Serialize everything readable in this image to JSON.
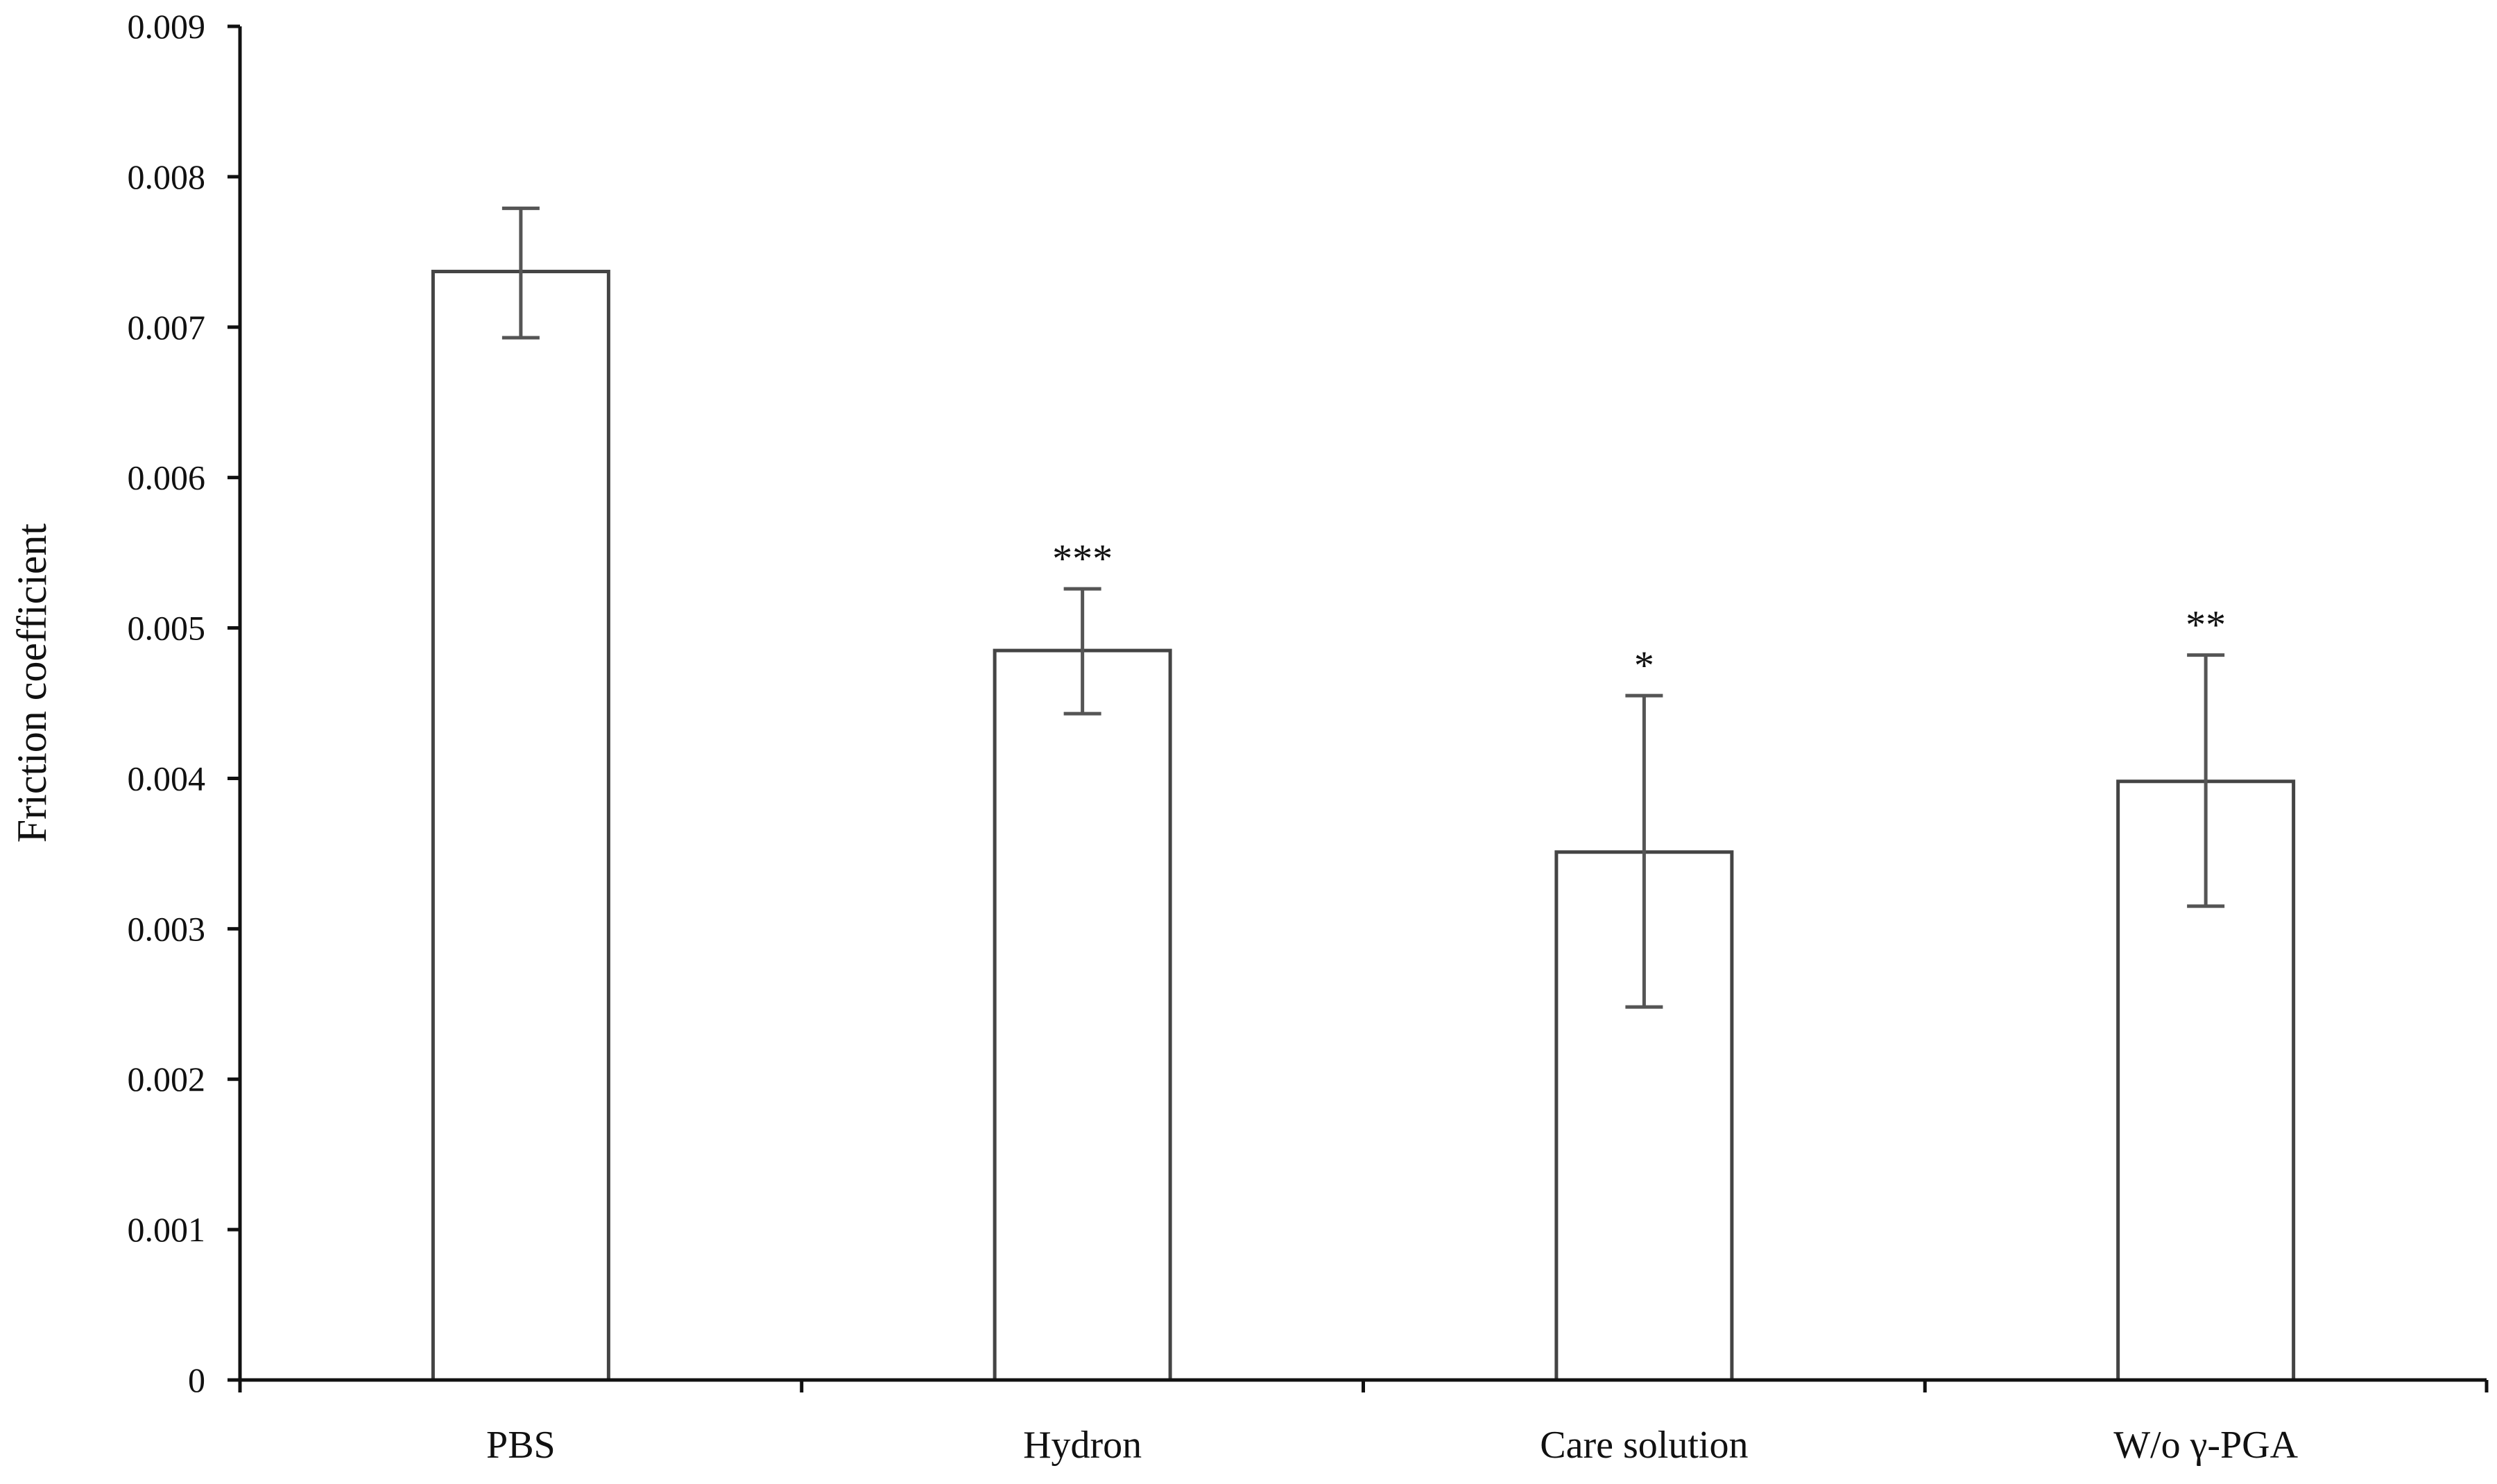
{
  "chart_data": {
    "type": "bar",
    "title": "",
    "xlabel": "",
    "ylabel": "Friction coefficient",
    "categories": [
      "PBS",
      "Hydron",
      "Care solution",
      "W/o γ-PGA"
    ],
    "values": [
      0.00737,
      0.00485,
      0.00351,
      0.00398
    ],
    "error_bars": [
      {
        "low": 0.00693,
        "high": 0.00779
      },
      {
        "low": 0.00443,
        "high": 0.00526
      },
      {
        "low": 0.00248,
        "high": 0.00455
      },
      {
        "low": 0.00315,
        "high": 0.00482
      }
    ],
    "significance": [
      "",
      "***",
      "*",
      "**"
    ],
    "ylim": [
      0,
      0.009
    ],
    "yticks": [
      "0",
      "0.001",
      "0.002",
      "0.003",
      "0.004",
      "0.005",
      "0.006",
      "0.007",
      "0.008",
      "0.009"
    ],
    "grid": false,
    "legend": "none",
    "colors": {
      "bar_fill": "#ffffff",
      "bar_stroke": "#444444",
      "axis": "#111111",
      "error_bar": "#555555"
    }
  }
}
